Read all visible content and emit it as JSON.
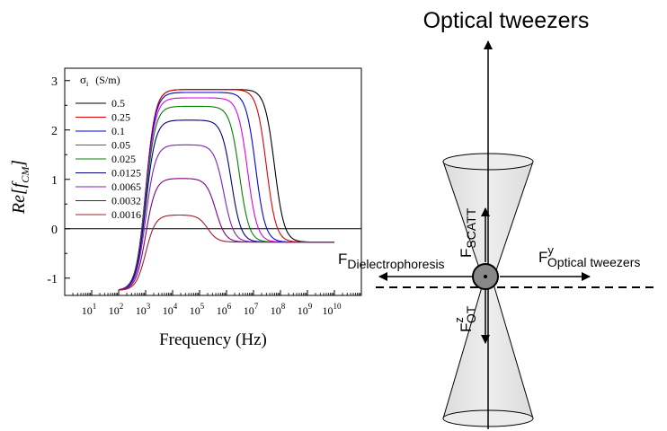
{
  "chart_data": {
    "type": "line",
    "xlabel": "Frequency (Hz)",
    "ylabel": "Re[f",
    "ylabel_sub": "CM",
    "ylabel_close": "]",
    "x_scale": "log",
    "xlim": [
      1,
      100000000000
    ],
    "ylim": [
      -1.35,
      3.25
    ],
    "x_ticks": [
      {
        "value": 10,
        "base": "10",
        "exp": "1"
      },
      {
        "value": 100,
        "base": "10",
        "exp": "2"
      },
      {
        "value": 1000,
        "base": "10",
        "exp": "3"
      },
      {
        "value": 10000,
        "base": "10",
        "exp": "4"
      },
      {
        "value": 100000,
        "base": "10",
        "exp": "5"
      },
      {
        "value": 1000000,
        "base": "10",
        "exp": "6"
      },
      {
        "value": 10000000,
        "base": "10",
        "exp": "7"
      },
      {
        "value": 100000000,
        "base": "10",
        "exp": "8"
      },
      {
        "value": 1000000000,
        "base": "10",
        "exp": "9"
      },
      {
        "value": 10000000000,
        "base": "10",
        "exp": "10"
      }
    ],
    "y_ticks": [
      {
        "value": -1,
        "label": "-1"
      },
      {
        "value": 0,
        "label": "0"
      },
      {
        "value": 1,
        "label": "1"
      },
      {
        "value": 2,
        "label": "2"
      },
      {
        "value": 3,
        "label": "3"
      }
    ],
    "legend_title_symbol": "σ",
    "legend_title_sub": "i",
    "legend_title_unit": "(S/m)",
    "legend_position": "top-left",
    "common_low_value": -1.25,
    "common_rise_frequency": 900,
    "common_end_value": -0.27,
    "series": [
      {
        "name": "0.5",
        "color": "#000000",
        "plateau": 2.82,
        "fall_frequency": 60000000
      },
      {
        "name": "0.25",
        "color": "#e00000",
        "plateau": 2.82,
        "fall_frequency": 30000000
      },
      {
        "name": "0.1",
        "color": "#0000e0",
        "plateau": 2.76,
        "fall_frequency": 12000000
      },
      {
        "name": "0.05",
        "color": "#e000e0",
        "plateau": 2.65,
        "fall_frequency": 6000000
      },
      {
        "name": "0.025",
        "color": "#008000",
        "plateau": 2.48,
        "fall_frequency": 3000000
      },
      {
        "name": "0.0125",
        "color": "#000080",
        "plateau": 2.2,
        "fall_frequency": 1500000
      },
      {
        "name": "0.0065",
        "color": "#8020c0",
        "plateau": 1.7,
        "fall_frequency": 800000
      },
      {
        "name": "0.0032",
        "color": "#800080",
        "plateau": 1.02,
        "fall_frequency": 400000
      },
      {
        "name": "0.0016",
        "color": "#a02030",
        "plateau": 0.28,
        "fall_frequency": 200000
      }
    ]
  },
  "diagram": {
    "title": "Optical tweezers",
    "force_scatt_main": "F",
    "force_scatt_sub": "SCATT",
    "force_dep_main": "F",
    "force_dep_sub": "Dielectrophoresis",
    "force_ot_y_main": "F",
    "force_ot_y_sup": "y",
    "force_ot_y_sub": "Optical tweezers",
    "force_ot_z_main": "F",
    "force_ot_z_sup": "z",
    "force_ot_z_sub": "OT"
  }
}
